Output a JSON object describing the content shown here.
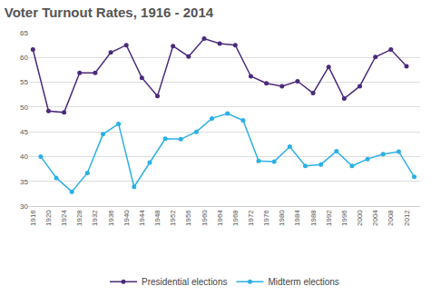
{
  "chart_data": {
    "type": "line",
    "title": "Voter Turnout Rates, 1916 - 2014",
    "series": [
      {
        "name": "Presidential elections",
        "color": "#4b2a7b",
        "marker": "circle",
        "x": [
          1916,
          1920,
          1924,
          1928,
          1932,
          1936,
          1940,
          1944,
          1948,
          1952,
          1956,
          1960,
          1964,
          1968,
          1972,
          1976,
          1980,
          1984,
          1988,
          1992,
          1996,
          2000,
          2004,
          2008,
          2012
        ],
        "values": [
          61.6,
          49.2,
          48.9,
          56.9,
          56.9,
          61.0,
          62.5,
          55.9,
          52.2,
          62.3,
          60.2,
          63.8,
          62.8,
          62.5,
          56.2,
          54.8,
          54.2,
          55.2,
          52.8,
          58.1,
          51.7,
          54.2,
          60.1,
          61.6,
          58.2
        ]
      },
      {
        "name": "Midterm elections",
        "color": "#2bb0e6",
        "marker": "circle",
        "x": [
          1918,
          1922,
          1926,
          1930,
          1934,
          1938,
          1942,
          1946,
          1950,
          1954,
          1958,
          1962,
          1966,
          1970,
          1974,
          1978,
          1982,
          1986,
          1990,
          1994,
          1998,
          2002,
          2006,
          2010,
          2014
        ],
        "values": [
          40.0,
          35.7,
          32.9,
          36.7,
          44.5,
          46.6,
          33.9,
          38.8,
          43.6,
          43.5,
          45.0,
          47.7,
          48.7,
          47.3,
          39.1,
          39.0,
          42.0,
          38.1,
          38.4,
          41.1,
          38.1,
          39.5,
          40.5,
          41.0,
          35.9
        ]
      }
    ],
    "xlim": [
      1915,
      2015.5
    ],
    "xticks": [
      1916,
      1920,
      1924,
      1928,
      1932,
      1936,
      1940,
      1944,
      1948,
      1952,
      1956,
      1960,
      1964,
      1968,
      1972,
      1976,
      1980,
      1984,
      1988,
      1992,
      1996,
      2000,
      2004,
      2008,
      2012
    ],
    "ylim": [
      30,
      65
    ],
    "yticks": [
      30,
      35,
      40,
      45,
      50,
      55,
      60,
      65
    ],
    "grid": true,
    "legend": "bottom"
  }
}
